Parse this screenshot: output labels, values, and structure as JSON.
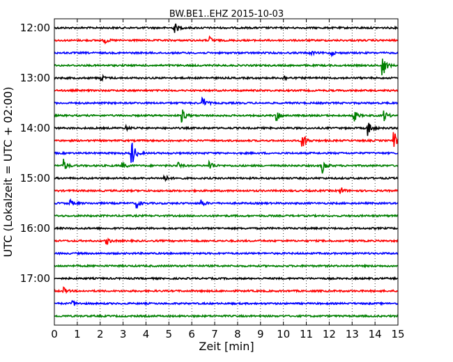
{
  "chart_data": {
    "type": "line",
    "title": "BW.BE1..EHZ 2015-10-03",
    "xlabel": "Zeit  [min]",
    "ylabel": "UTC (Lokalzeit = UTC + 02:00)",
    "xlim": [
      0,
      15
    ],
    "x_ticks": [
      "0",
      "1",
      "2",
      "3",
      "4",
      "5",
      "6",
      "7",
      "8",
      "9",
      "10",
      "11",
      "12",
      "13",
      "14",
      "15"
    ],
    "y_ticks": [
      "12:00",
      "13:00",
      "14:00",
      "15:00",
      "16:00",
      "17:00"
    ],
    "grid": "vertical dotted lines at each minute",
    "trace_colors": [
      "#000000",
      "#ff0000",
      "#0000ff",
      "#008000"
    ],
    "trace_start_times": [
      "12:00",
      "12:15",
      "12:30",
      "12:45",
      "13:00",
      "13:15",
      "13:30",
      "13:45",
      "14:00",
      "14:15",
      "14:30",
      "14:45",
      "15:00",
      "15:15",
      "15:30",
      "15:45",
      "16:00",
      "16:15",
      "16:30",
      "16:45",
      "17:00",
      "17:15",
      "17:30",
      "17:45"
    ],
    "events": [
      {
        "trace": 0,
        "minute": 5.25,
        "amplitude": 0.45
      },
      {
        "trace": 1,
        "minute": 2.2,
        "amplitude": 0.25
      },
      {
        "trace": 1,
        "minute": 6.8,
        "amplitude": 0.25
      },
      {
        "trace": 2,
        "minute": 11.2,
        "amplitude": 0.15
      },
      {
        "trace": 2,
        "minute": 12.1,
        "amplitude": 0.15
      },
      {
        "trace": 3,
        "minute": 14.35,
        "amplitude": 0.9
      },
      {
        "trace": 4,
        "minute": 2.0,
        "amplitude": 0.35
      },
      {
        "trace": 4,
        "minute": 10.0,
        "amplitude": 0.2
      },
      {
        "trace": 6,
        "minute": 6.5,
        "amplitude": 0.4
      },
      {
        "trace": 7,
        "minute": 5.6,
        "amplitude": 0.5
      },
      {
        "trace": 7,
        "minute": 9.7,
        "amplitude": 0.5
      },
      {
        "trace": 7,
        "minute": 13.1,
        "amplitude": 0.4
      },
      {
        "trace": 7,
        "minute": 14.4,
        "amplitude": 0.4
      },
      {
        "trace": 8,
        "minute": 3.1,
        "amplitude": 0.2
      },
      {
        "trace": 8,
        "minute": 13.7,
        "amplitude": 0.6
      },
      {
        "trace": 9,
        "minute": 10.85,
        "amplitude": 0.65
      },
      {
        "trace": 9,
        "minute": 14.85,
        "amplitude": 0.65
      },
      {
        "trace": 10,
        "minute": 3.4,
        "amplitude": 1.0
      },
      {
        "trace": 11,
        "minute": 0.4,
        "amplitude": 0.55
      },
      {
        "trace": 11,
        "minute": 3.0,
        "amplitude": 0.25
      },
      {
        "trace": 11,
        "minute": 5.4,
        "amplitude": 0.25
      },
      {
        "trace": 11,
        "minute": 6.8,
        "amplitude": 0.4
      },
      {
        "trace": 11,
        "minute": 11.7,
        "amplitude": 0.6
      },
      {
        "trace": 12,
        "minute": 4.8,
        "amplitude": 0.3
      },
      {
        "trace": 13,
        "minute": 12.5,
        "amplitude": 0.3
      },
      {
        "trace": 14,
        "minute": 0.7,
        "amplitude": 0.25
      },
      {
        "trace": 14,
        "minute": 3.6,
        "amplitude": 0.35
      },
      {
        "trace": 14,
        "minute": 6.4,
        "amplitude": 0.35
      },
      {
        "trace": 17,
        "minute": 2.3,
        "amplitude": 0.25
      },
      {
        "trace": 21,
        "minute": 0.4,
        "amplitude": 0.25
      },
      {
        "trace": 22,
        "minute": 0.8,
        "amplitude": 0.25
      }
    ]
  }
}
